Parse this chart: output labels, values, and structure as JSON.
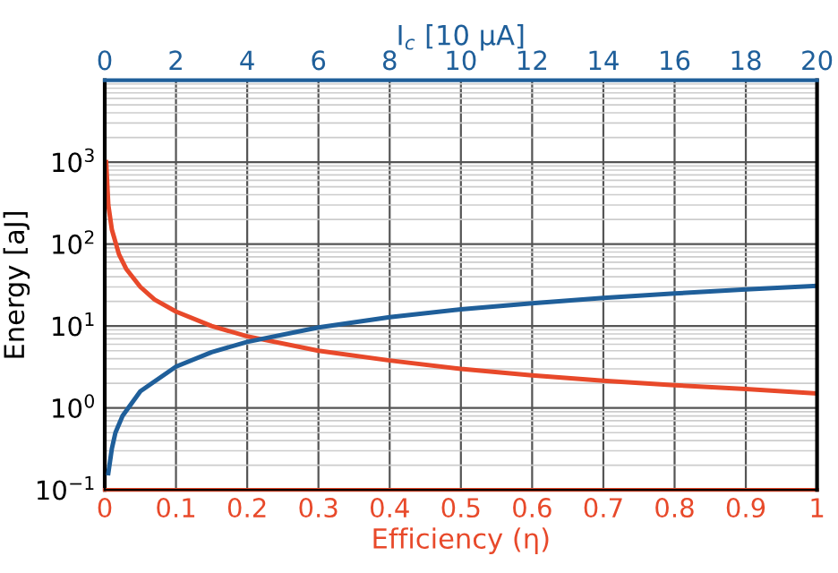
{
  "chart_data": {
    "type": "line",
    "xlabel": "Efficiency (η)",
    "x2label": "I$_{c}$ [10 μA]",
    "ylabel": "Energy [aJ]",
    "series": [
      {
        "color": "#e8492a",
        "x": [
          0.002,
          0.005,
          0.01,
          0.02,
          0.03,
          0.05,
          0.07,
          0.1,
          0.15,
          0.2,
          0.3,
          0.4,
          0.5,
          0.6,
          0.7,
          0.8,
          0.9,
          1.0
        ],
        "values": [
          1000,
          300,
          150,
          75,
          50,
          30,
          21,
          15,
          10,
          7.5,
          5,
          3.8,
          3,
          2.5,
          2.15,
          1.9,
          1.7,
          1.5
        ]
      },
      {
        "color": "#1f5f9a",
        "axis": "x2",
        "x": [
          0.1,
          0.2,
          0.3,
          0.5,
          1,
          2,
          3,
          4,
          6,
          8,
          10,
          12,
          14,
          16,
          18,
          20
        ],
        "values": [
          0.16,
          0.32,
          0.5,
          0.8,
          1.6,
          3.2,
          4.8,
          6.4,
          9.6,
          12.8,
          16,
          19,
          22,
          25,
          28,
          31
        ]
      }
    ],
    "xlim": [
      0,
      1
    ],
    "xticks": [
      0,
      0.1,
      0.2,
      0.3,
      0.4,
      0.5,
      0.6,
      0.7,
      0.8,
      0.9,
      1
    ],
    "x2lim": [
      0,
      20
    ],
    "x2ticks": [
      0,
      2,
      4,
      6,
      8,
      10,
      12,
      14,
      16,
      18,
      20
    ],
    "ylim": [
      0.1,
      10000
    ],
    "log": "y",
    "yticks": [
      {
        "value": 0.1,
        "label": "10$^{−1}$"
      },
      {
        "value": 1,
        "label": "10$^{0}$"
      },
      {
        "value": 10,
        "label": "10$^{1}$"
      },
      {
        "value": 100,
        "label": "10$^{2}$"
      },
      {
        "value": 1000,
        "label": "10$^{3}$"
      }
    ],
    "grid": true
  }
}
